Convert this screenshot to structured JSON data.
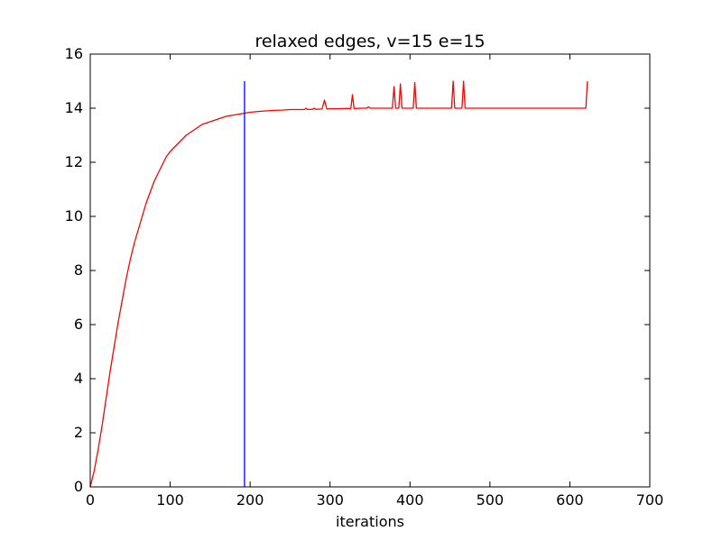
{
  "chart_data": {
    "type": "line",
    "title": "relaxed edges, v=15 e=15",
    "xlabel": "iterations",
    "ylabel": "",
    "xlim": [
      0,
      700
    ],
    "ylim": [
      0,
      16
    ],
    "xticks": [
      0,
      100,
      200,
      300,
      400,
      500,
      600,
      700
    ],
    "yticks": [
      0,
      2,
      4,
      6,
      8,
      10,
      12,
      14,
      16
    ],
    "grid": false,
    "legend": "none",
    "series": [
      {
        "color": "#ff0000",
        "x": [
          0,
          5,
          10,
          15,
          20,
          25,
          30,
          35,
          40,
          45,
          50,
          55,
          60,
          65,
          70,
          75,
          80,
          85,
          90,
          95,
          100,
          110,
          120,
          130,
          140,
          150,
          160,
          170,
          180,
          190,
          200,
          210,
          220,
          230,
          240,
          250,
          260,
          268,
          270,
          272,
          278,
          280,
          282,
          290,
          293,
          296,
          300,
          310,
          320,
          326,
          328,
          330,
          340,
          346,
          348,
          350,
          360,
          375,
          378,
          380,
          382,
          386,
          388,
          390,
          392,
          396,
          404,
          406,
          408,
          412,
          430,
          450,
          452,
          454,
          456,
          460,
          465,
          467,
          469,
          475,
          500,
          550,
          600,
          620,
          622
        ],
        "y": [
          0,
          0.6,
          1.4,
          2.3,
          3.3,
          4.3,
          5.2,
          6.1,
          6.9,
          7.7,
          8.4,
          9.0,
          9.5,
          10.0,
          10.5,
          10.9,
          11.3,
          11.6,
          11.9,
          12.2,
          12.4,
          12.7,
          13.0,
          13.2,
          13.4,
          13.5,
          13.6,
          13.7,
          13.75,
          13.8,
          13.85,
          13.88,
          13.9,
          13.92,
          13.93,
          13.95,
          13.95,
          13.95,
          14.0,
          13.95,
          13.96,
          14.0,
          13.96,
          13.97,
          14.3,
          13.97,
          13.98,
          13.98,
          13.99,
          13.99,
          14.5,
          13.99,
          14.0,
          14.0,
          14.05,
          14.0,
          14.0,
          14.0,
          14.0,
          14.8,
          14.0,
          14.0,
          14.9,
          14.0,
          14.0,
          14.0,
          14.0,
          14.95,
          14.0,
          14.0,
          14.0,
          14.0,
          14.0,
          15.0,
          14.0,
          14.0,
          14.0,
          15.0,
          14.0,
          14.0,
          14.0,
          14.0,
          14.0,
          14.0,
          15.0
        ]
      },
      {
        "color": "#0000ff",
        "x": [
          193,
          193
        ],
        "y": [
          0,
          15
        ]
      }
    ]
  }
}
